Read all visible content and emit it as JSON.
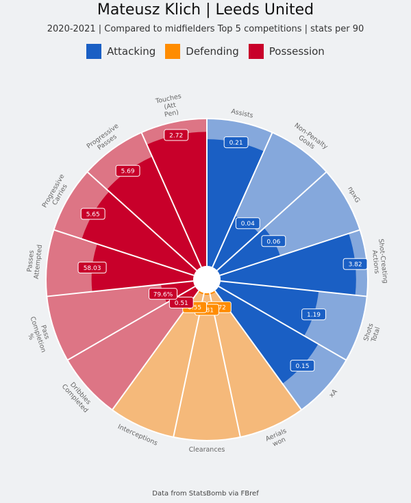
{
  "title": "Mateusz Klich | Leeds United",
  "subtitle": "2020-2021 | Compared to midfielders Top 5 competitions | stats per 90",
  "footer": "Data from StatsBomb via FBref",
  "legend": [
    {
      "label": "Attacking",
      "color": "#1a5fc4"
    },
    {
      "label": "Defending",
      "color": "#ff8c00"
    },
    {
      "label": "Possession",
      "color": "#c8002a"
    }
  ],
  "chart_data": {
    "type": "pizza",
    "scale": "percentile",
    "range": [
      0,
      100
    ],
    "categories": [
      {
        "name": "Attacking",
        "color": "#1a5fc4",
        "light_color": "#85a8dc"
      },
      {
        "name": "Defending",
        "color": "#ff8c00",
        "light_color": "#f5b97a"
      },
      {
        "name": "Possession",
        "color": "#c8002a",
        "light_color": "#dd7585"
      }
    ],
    "params": [
      {
        "label": "Assists",
        "value_label": "0.21",
        "percentile": 86,
        "category": "Attacking"
      },
      {
        "label": "Non-Penalty Goals",
        "value_label": "0.04",
        "percentile": 38,
        "category": "Attacking"
      },
      {
        "label": "npxG",
        "value_label": "0.06",
        "percentile": 43,
        "category": "Attacking"
      },
      {
        "label": "Shot-Creating Actions",
        "value_label": "3.82",
        "percentile": 92,
        "category": "Attacking"
      },
      {
        "label": "Shots Total",
        "value_label": "1.19",
        "percentile": 67,
        "category": "Attacking"
      },
      {
        "label": "xA",
        "value_label": "0.15",
        "percentile": 78,
        "category": "Attacking"
      },
      {
        "label": "Aerials won",
        "value_label": "0.72",
        "percentile": 1,
        "category": "Defending"
      },
      {
        "label": "Clearances",
        "value_label": "0.81",
        "percentile": 1,
        "category": "Defending"
      },
      {
        "label": "Interceptions",
        "value_label": "0.55",
        "percentile": 1,
        "category": "Defending"
      },
      {
        "label": "Dribbles Completed",
        "value_label": "0.51",
        "percentile": 14,
        "category": "Possession"
      },
      {
        "label": "Pass Completion %",
        "value_label": "79.6%",
        "percentile": 22,
        "category": "Possession"
      },
      {
        "label": "Passes Attempted",
        "value_label": "58.03",
        "percentile": 69,
        "category": "Possession"
      },
      {
        "label": "Progressive Carries",
        "value_label": "5.65",
        "percentile": 80,
        "category": "Possession"
      },
      {
        "label": "Progressive Passes",
        "value_label": "5.69",
        "percentile": 82,
        "category": "Possession"
      },
      {
        "label": "Touches (Att Pen)",
        "value_label": "2.72",
        "percentile": 91,
        "category": "Possession"
      }
    ]
  }
}
